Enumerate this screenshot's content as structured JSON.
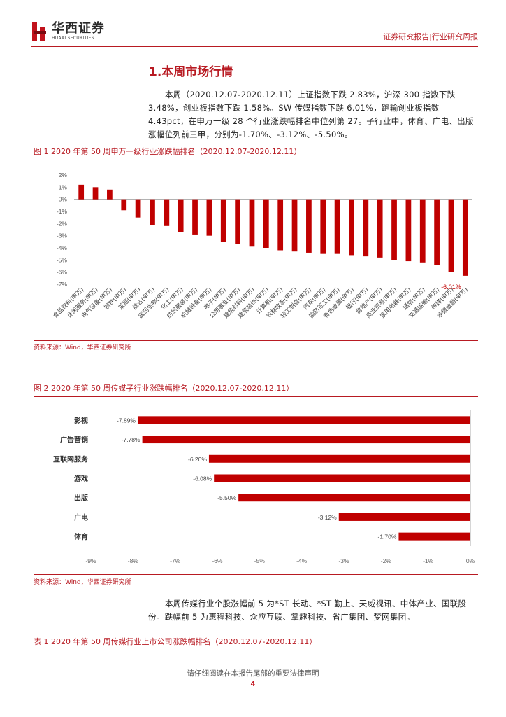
{
  "header": {
    "logo_cn": "华西证券",
    "logo_en": "HUAXI SECURITIES",
    "report_type": "证券研究报告|行业研究周报"
  },
  "section": {
    "title": "1.本周市场行情",
    "para1": "本周（2020.12.07-2020.12.11）上证指数下跌 2.83%，沪深 300 指数下跌 3.48%，创业板指数下跌 1.58%。SW 传媒指数下跌 6.01%，跑输创业板指数 4.43pct，在申万一级 28 个行业涨跌幅排名中位列第 27。子行业中，体育、广电、出版涨幅位列前三甲，分别为-1.70%、-3.12%、-5.50%。",
    "para2": "本周传媒行业个股涨幅前 5 为*ST 长动、*ST 勤上、天威视讯、中体产业、国联股份。跌幅前 5 为惠程科技、众应互联、掌趣科技、省广集团、梦网集团。"
  },
  "figures": {
    "fig1_caption": "图 1  2020 年第 50 周申万一级行业涨跌幅排名（2020.12.07-2020.12.11）",
    "fig1_source": "资料来源：Wind，华西证券研究所",
    "fig2_caption": "图 2  2020 年第 50 周传媒子行业涨跌幅排名（2020.12.07-2020.12.11）",
    "fig2_source": "资料来源：Wind，华西证券研究所",
    "table1_caption": "表 1  2020 年第 50 周传媒行业上市公司涨跌幅排名（2020.12.07-2020.12.11）"
  },
  "chart_data": [
    {
      "type": "bar",
      "title": "2020 年第 50 周申万一级行业涨跌幅排名",
      "categories": [
        "食品饮料(申万)",
        "休闲服务(申万)",
        "电气设备(申万)",
        "钢铁(申万)",
        "采掘(申万)",
        "综合(申万)",
        "医药生物(申万)",
        "化工(申万)",
        "纺织服装(申万)",
        "机械设备(申万)",
        "电子(申万)",
        "公用事业(申万)",
        "建筑材料(申万)",
        "建筑装饰(申万)",
        "计算机(申万)",
        "农林牧渔(申万)",
        "轻工制造(申万)",
        "汽车(申万)",
        "国防军工(申万)",
        "有色金属(申万)",
        "银行(申万)",
        "房地产(申万)",
        "商业贸易(申万)",
        "家用电器(申万)",
        "通信(申万)",
        "交通运输(申万)",
        "传媒(申万)",
        "非银金融(申万)"
      ],
      "values": [
        1.2,
        1.0,
        0.8,
        -0.9,
        -1.5,
        -2.1,
        -2.2,
        -2.7,
        -2.9,
        -3.0,
        -3.5,
        -3.7,
        -3.9,
        -4.0,
        -4.2,
        -4.3,
        -4.4,
        -4.5,
        -4.5,
        -4.6,
        -4.7,
        -4.8,
        -5.0,
        -5.1,
        -5.2,
        -5.4,
        -6.01,
        -6.3
      ],
      "highlight_label": "-6.01%",
      "y_ticks": [
        "2%",
        "1%",
        "0%",
        "-1%",
        "-2%",
        "-3%",
        "-4%",
        "-5%",
        "-6%",
        "-7%"
      ],
      "ylim": [
        -7,
        2
      ],
      "bar_color": "#c00000"
    },
    {
      "type": "bar",
      "orientation": "horizontal",
      "title": "2020 年第 50 周传媒子行业涨跌幅排名",
      "categories": [
        "影视",
        "广告营销",
        "互联网服务",
        "游戏",
        "出版",
        "广电",
        "体育"
      ],
      "values": [
        -7.89,
        -7.78,
        -6.2,
        -6.08,
        -5.5,
        -3.12,
        -1.7
      ],
      "data_labels": [
        "-7.89%",
        "-7.78%",
        "-6.20%",
        "-6.08%",
        "-5.50%",
        "-3.12%",
        "-1.70%"
      ],
      "x_ticks": [
        "-9%",
        "-8%",
        "-7%",
        "-6%",
        "-5%",
        "-4%",
        "-3%",
        "-2%",
        "-1%",
        "0%"
      ],
      "xlim": [
        -9,
        0
      ],
      "bar_color": "#c00000"
    }
  ],
  "footer": {
    "notice": "请仔细阅读在本报告尾部的重要法律声明",
    "page": "4"
  }
}
